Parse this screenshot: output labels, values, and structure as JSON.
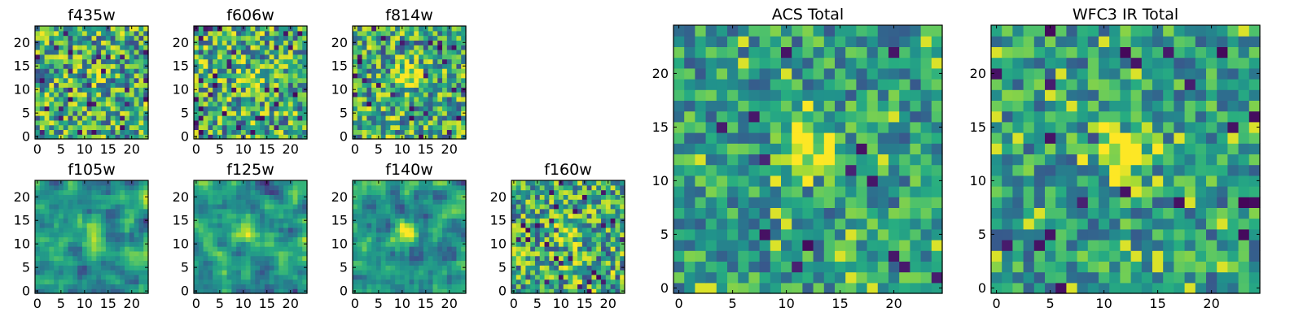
{
  "figure": {
    "colormap": "viridis",
    "panels": [
      {
        "id": "f435w",
        "title": "f435w",
        "grid_size": 24,
        "xticks": [
          0,
          5,
          10,
          15,
          20
        ],
        "yticks": [
          0,
          5,
          10,
          15,
          20
        ],
        "texture": "fine-noise",
        "center_brightness": 0.15
      },
      {
        "id": "f606w",
        "title": "f606w",
        "grid_size": 24,
        "xticks": [
          0,
          5,
          10,
          15,
          20
        ],
        "yticks": [
          0,
          5,
          10,
          15,
          20
        ],
        "texture": "fine-noise",
        "center_brightness": 0.35
      },
      {
        "id": "f814w",
        "title": "f814w",
        "grid_size": 24,
        "xticks": [
          0,
          5,
          10,
          15,
          20
        ],
        "yticks": [
          0,
          5,
          10,
          15,
          20
        ],
        "texture": "fine-noise",
        "center_brightness": 0.55
      },
      {
        "id": "f105w",
        "title": "f105w",
        "grid_size": 24,
        "xticks": [
          0,
          5,
          10,
          15,
          20
        ],
        "yticks": [
          0,
          5,
          10,
          15,
          20
        ],
        "texture": "smooth-noise",
        "center_brightness": 0.4
      },
      {
        "id": "f125w",
        "title": "f125w",
        "grid_size": 24,
        "xticks": [
          0,
          5,
          10,
          15,
          20
        ],
        "yticks": [
          0,
          5,
          10,
          15,
          20
        ],
        "texture": "smooth-noise",
        "center_brightness": 0.3
      },
      {
        "id": "f140w",
        "title": "f140w",
        "grid_size": 24,
        "xticks": [
          0,
          5,
          10,
          15,
          20
        ],
        "yticks": [
          0,
          5,
          10,
          15,
          20
        ],
        "texture": "smooth-noise",
        "center_brightness": 0.35
      },
      {
        "id": "f160w",
        "title": "f160w",
        "grid_size": 24,
        "xticks": [
          0,
          5,
          10,
          15,
          20
        ],
        "yticks": [
          0,
          5,
          10,
          15,
          20
        ],
        "texture": "fine-noise",
        "center_brightness": 0.45
      },
      {
        "id": "acs_total",
        "title": "ACS Total",
        "grid_size": 25,
        "xticks": [
          0,
          5,
          10,
          15,
          20
        ],
        "yticks": [
          0,
          5,
          10,
          15,
          20
        ],
        "texture": "coarse-noise",
        "center_brightness": 0.6
      },
      {
        "id": "wfc3_ir_total",
        "title": "WFC3 IR Total",
        "grid_size": 25,
        "xticks": [
          0,
          5,
          10,
          15,
          20
        ],
        "yticks": [
          0,
          5,
          10,
          15,
          20
        ],
        "texture": "coarse-noise",
        "center_brightness": 0.6
      }
    ]
  }
}
